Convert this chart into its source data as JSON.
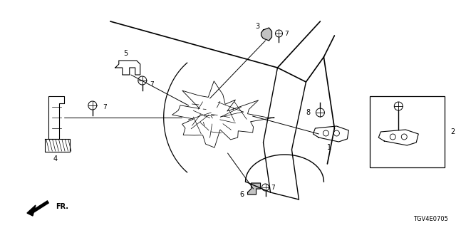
{
  "diagram_code": "TGV4E0705",
  "bg_color": "#ffffff",
  "line_color": "#000000",
  "gray_color": "#555555"
}
